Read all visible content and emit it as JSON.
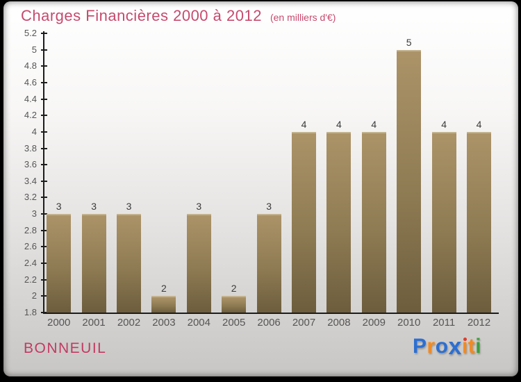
{
  "title": {
    "text": "Charges Financières 2000 à 2012",
    "subtitle": "(en milliers d'€)",
    "color": "#c64a6e"
  },
  "chart_data": {
    "type": "bar",
    "title": "Charges Financières 2000 à 2012",
    "subtitle": "(en milliers d'€)",
    "categories": [
      "2000",
      "2001",
      "2002",
      "2003",
      "2004",
      "2005",
      "2006",
      "2007",
      "2008",
      "2009",
      "2010",
      "2011",
      "2012"
    ],
    "values": [
      3,
      3,
      3,
      2,
      3,
      2,
      3,
      4,
      4,
      4,
      5,
      4,
      4
    ],
    "ylim": [
      1.8,
      5.2
    ],
    "ytick_step": 0.2,
    "grid": false,
    "legend": false,
    "value_labels": true,
    "bar_color_top": "#ac9368",
    "bar_color_bottom": "#6d5d3d",
    "axis_color": "#1c1c1c",
    "label_color": "#555555"
  },
  "footer": {
    "place": "BONNEUIL",
    "logo_name": "Proxiti",
    "logo_letters": [
      {
        "ch": "P",
        "color": "#2b6fd3"
      },
      {
        "ch": "r",
        "color": "#f5891d"
      },
      {
        "ch": "o",
        "color": "#2b6fd3"
      },
      {
        "ch": "x",
        "color": "#2b6fd3",
        "big": true
      },
      {
        "ch": "i",
        "color": "#f5891d",
        "dot": "#e03a2a"
      },
      {
        "ch": "t",
        "color": "#f5891d"
      },
      {
        "ch": "i",
        "color": "#3c9e3c"
      }
    ]
  }
}
